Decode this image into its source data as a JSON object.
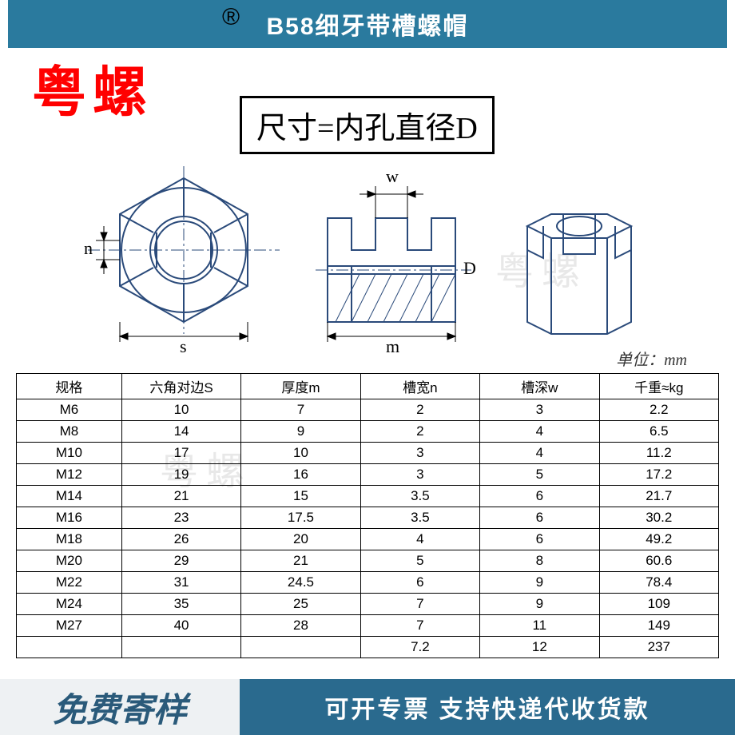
{
  "header": {
    "title": "B58细牙带槽螺帽",
    "bg_color": "#2a7a9e",
    "text_color": "#ffffff"
  },
  "watermark_red": "粤螺",
  "registered_mark": "®",
  "size_box": "尺寸=内孔直径D",
  "diagram": {
    "labels": {
      "n": "n",
      "s": "s",
      "w": "w",
      "m": "m",
      "D": "D"
    }
  },
  "unit": "单位：mm",
  "watermark_grey": "粤螺",
  "table": {
    "columns": [
      "规格",
      "六角对边S",
      "厚度m",
      "槽宽n",
      "槽深w",
      "千重≈kg"
    ],
    "col_widths": [
      "15%",
      "17%",
      "17%",
      "17%",
      "17%",
      "17%"
    ],
    "rows": [
      [
        "M6",
        "10",
        "7",
        "2",
        "3",
        "2.2"
      ],
      [
        "M8",
        "14",
        "9",
        "2",
        "4",
        "6.5"
      ],
      [
        "M10",
        "17",
        "10",
        "3",
        "4",
        "11.2"
      ],
      [
        "M12",
        "19",
        "16",
        "3",
        "5",
        "17.2"
      ],
      [
        "M14",
        "21",
        "15",
        "3.5",
        "6",
        "21.7"
      ],
      [
        "M16",
        "23",
        "17.5",
        "3.5",
        "6",
        "30.2"
      ],
      [
        "M18",
        "26",
        "20",
        "4",
        "6",
        "49.2"
      ],
      [
        "M20",
        "29",
        "21",
        "5",
        "8",
        "60.6"
      ],
      [
        "M22",
        "31",
        "24.5",
        "6",
        "9",
        "78.4"
      ],
      [
        "M24",
        "35",
        "25",
        "7",
        "9",
        "109"
      ],
      [
        "M27",
        "40",
        "28",
        "7",
        "11",
        "149"
      ],
      [
        "",
        "",
        "",
        "7.2",
        "12",
        "237"
      ]
    ]
  },
  "footer": {
    "left": "免费寄样",
    "right": "可开专票 支持快递代收货款",
    "left_bg": "#eef1f3",
    "left_color": "#2a5a7a",
    "right_bg": "#2a6a8e"
  }
}
